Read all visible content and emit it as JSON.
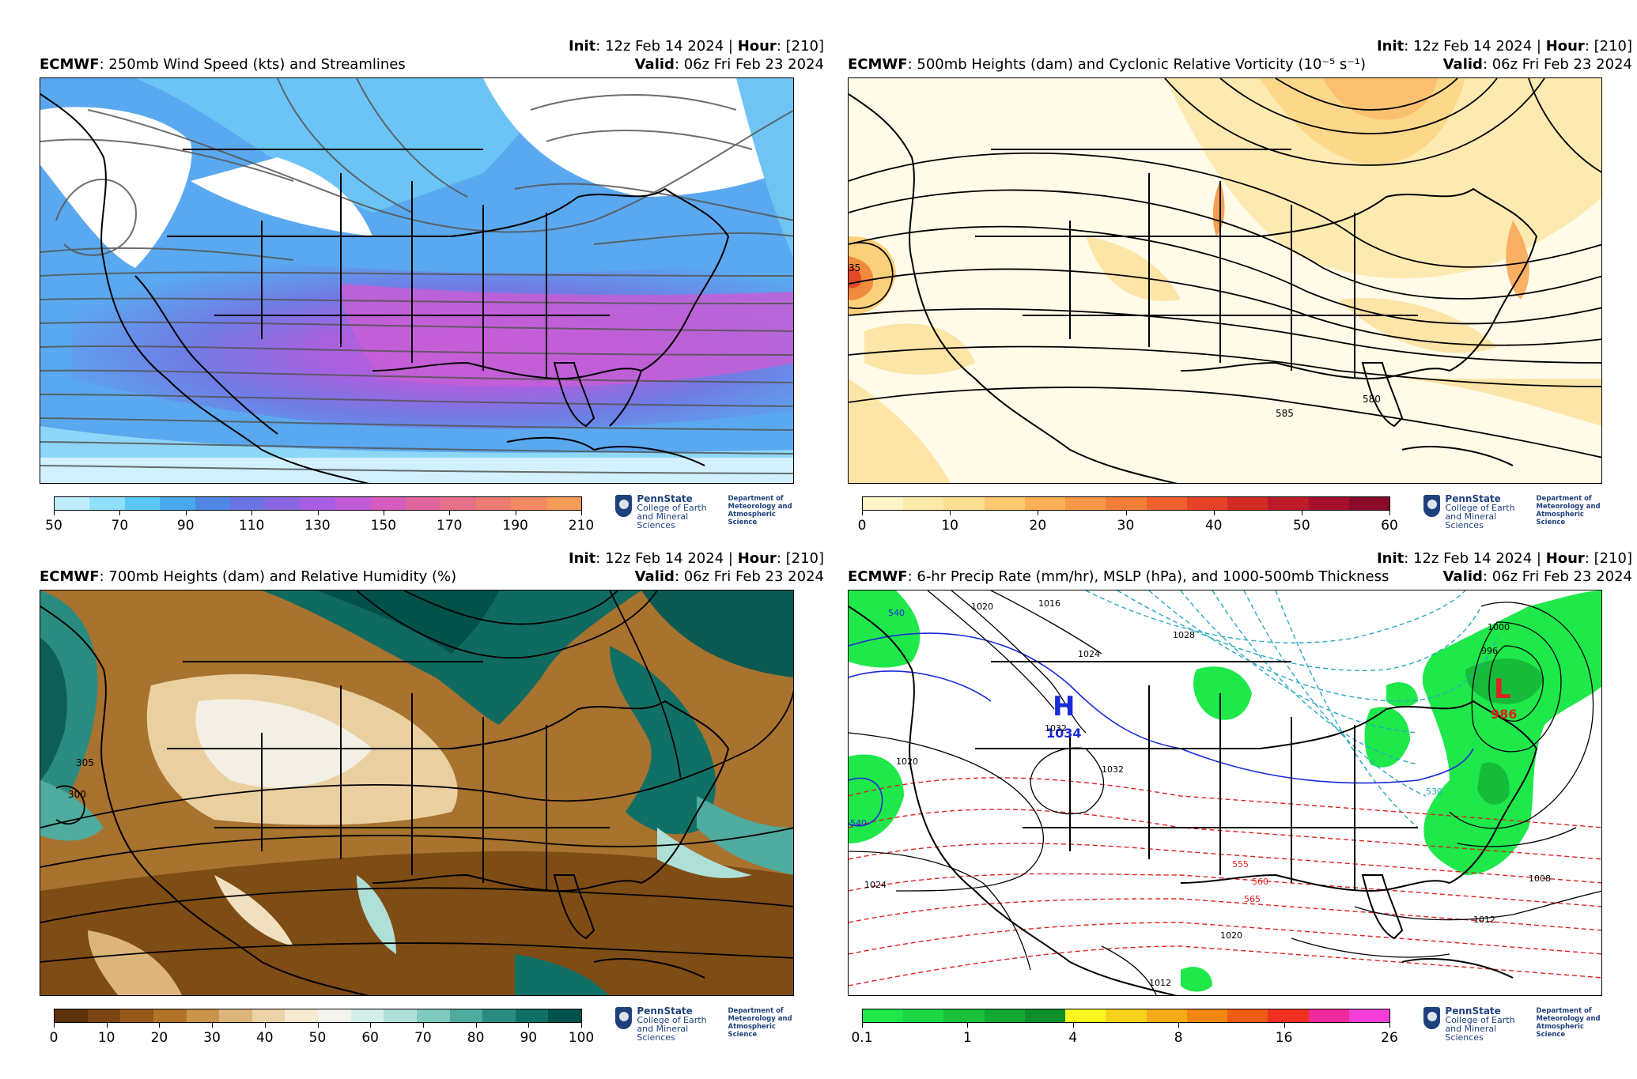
{
  "panels": [
    {
      "init_label": "Init",
      "init_value": ": 12z Feb 14 2024 | ",
      "hour_label": "Hour",
      "hour_value": ": [210]",
      "valid_label": "Valid",
      "valid_value": ": 06z Fri Feb 23 2024",
      "model": "ECMWF",
      "title": ": 250mb Wind Speed (kts) and Streamlines",
      "colorbar": {
        "colors": [
          "#bfefff",
          "#8ee0fb",
          "#5cc8f5",
          "#4aa8ef",
          "#4f87e6",
          "#6a74e0",
          "#8a66e0",
          "#a85ee2",
          "#c25bd8",
          "#d65dbf",
          "#e0649e",
          "#e8708a",
          "#f07c74",
          "#f48a62",
          "#f89a58"
        ],
        "ticks": [
          "50",
          "70",
          "90",
          "110",
          "130",
          "150",
          "170",
          "190",
          "210"
        ]
      }
    },
    {
      "init_label": "Init",
      "init_value": ": 12z Feb 14 2024 | ",
      "hour_label": "Hour",
      "hour_value": ": [210]",
      "valid_label": "Valid",
      "valid_value": ": 06z Fri Feb 23 2024",
      "model": "ECMWF",
      "title": ": 500mb Heights (dam) and Cyclonic Relative Vorticity (10⁻⁵ s⁻¹)",
      "contour_labels": [
        "580",
        "585",
        "35"
      ],
      "colorbar": {
        "colors": [
          "#fff6c8",
          "#feeaa8",
          "#fddf92",
          "#fcc870",
          "#fbb058",
          "#f99846",
          "#f57e38",
          "#ef602e",
          "#e54228",
          "#d42a24",
          "#bd1a2a",
          "#a5102e",
          "#8a0a2a"
        ],
        "ticks": [
          "0",
          "10",
          "20",
          "30",
          "40",
          "50",
          "60"
        ]
      }
    },
    {
      "init_label": "Init",
      "init_value": ": 12z Feb 14 2024 | ",
      "hour_label": "Hour",
      "hour_value": ": [210]",
      "valid_label": "Valid",
      "valid_value": ": 06z Fri Feb 23 2024",
      "model": "ECMWF",
      "title": ": 700mb Heights (dam) and Relative Humidity (%)",
      "contour_labels": [
        "305",
        "300"
      ],
      "colorbar": {
        "colors": [
          "#5b3209",
          "#7a4510",
          "#96591a",
          "#b07328",
          "#c9934a",
          "#ddb57a",
          "#ecd3a5",
          "#f6ead0",
          "#f4f4ee",
          "#d6efeb",
          "#afe0d8",
          "#7fc9bd",
          "#4fab9e",
          "#2a8c80",
          "#117066",
          "#01524a"
        ],
        "ticks": [
          "0",
          "10",
          "20",
          "30",
          "40",
          "50",
          "60",
          "70",
          "80",
          "90",
          "100"
        ]
      }
    },
    {
      "init_label": "Init",
      "init_value": ": 12z Feb 14 2024 | ",
      "hour_label": "Hour",
      "hour_value": ": [210]",
      "valid_label": "Valid",
      "valid_value": ": 06z Fri Feb 23 2024",
      "model": "ECMWF",
      "title": ": 6-hr Precip Rate (mm/hr), MSLP (hPa), and 1000-500mb Thickness",
      "high_symbol": "H",
      "high_value": "1034",
      "low_symbol": "L",
      "low_value": "986",
      "isobar_labels": [
        "1020",
        "1016",
        "1024",
        "1028",
        "1032",
        "1032",
        "1020",
        "1024",
        "1000",
        "996",
        "1008",
        "1012",
        "1020",
        "1012"
      ],
      "thickness_labels": [
        "540",
        "555",
        "560",
        "565",
        "540",
        "530"
      ],
      "colorbar": {
        "colors": [
          "#1ee84a",
          "#1bd642",
          "#18c23a",
          "#13a832",
          "#0f8f2a",
          "#f8f820",
          "#f6d21c",
          "#f4ac18",
          "#f48614",
          "#f05c14",
          "#f03020",
          "#f02a9c",
          "#f43cd8"
        ],
        "ticks": [
          "0.1",
          "1",
          "4",
          "8",
          "16",
          "26"
        ]
      }
    }
  ],
  "logo": {
    "university": "PennState",
    "college_line1": "College of Earth",
    "college_line2": "and Mineral Sciences",
    "dept_line1": "Department of",
    "dept_line2": "Meteorology and",
    "dept_line3": "Atmospheric Science"
  }
}
